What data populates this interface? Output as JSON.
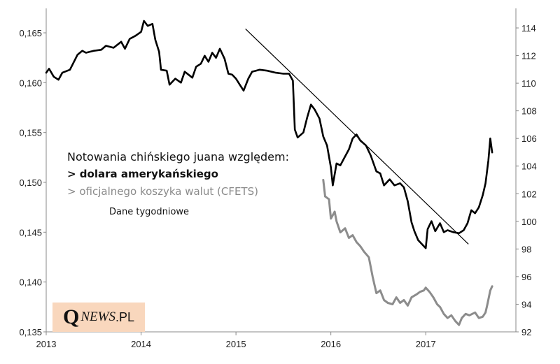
{
  "chart_data": {
    "type": "line",
    "title": "",
    "grid": false,
    "xlabel": "",
    "ylabel": "",
    "x_ticks": [
      "2013",
      "2014",
      "2015",
      "2016",
      "2017"
    ],
    "y_left": {
      "ticks": [
        "0,135",
        "0,140",
        "0,145",
        "0,150",
        "0,155",
        "0,160",
        "0,165"
      ],
      "range": [
        0.135,
        0.168
      ]
    },
    "y_right": {
      "ticks": [
        "92",
        "94",
        "96",
        "98",
        "100",
        "102",
        "104",
        "106",
        "108",
        "110",
        "112",
        "114"
      ],
      "range": [
        92,
        115
      ]
    },
    "series": [
      {
        "name": "dolara amerykańskiego",
        "axis": "left",
        "color": "#000000",
        "points": [
          [
            2013.0,
            0.161
          ],
          [
            2013.03,
            0.1614
          ],
          [
            2013.08,
            0.1606
          ],
          [
            2013.13,
            0.1603
          ],
          [
            2013.17,
            0.161
          ],
          [
            2013.25,
            0.1613
          ],
          [
            2013.33,
            0.1628
          ],
          [
            2013.38,
            0.1632
          ],
          [
            2013.42,
            0.163
          ],
          [
            2013.5,
            0.1632
          ],
          [
            2013.58,
            0.1633
          ],
          [
            2013.63,
            0.1637
          ],
          [
            2013.71,
            0.1635
          ],
          [
            2013.79,
            0.1641
          ],
          [
            2013.83,
            0.1634
          ],
          [
            2013.88,
            0.1644
          ],
          [
            2013.94,
            0.1647
          ],
          [
            2014.0,
            0.1651
          ],
          [
            2014.03,
            0.1662
          ],
          [
            2014.07,
            0.1657
          ],
          [
            2014.12,
            0.1659
          ],
          [
            2014.15,
            0.1643
          ],
          [
            2014.19,
            0.1631
          ],
          [
            2014.21,
            0.1613
          ],
          [
            2014.27,
            0.1612
          ],
          [
            2014.3,
            0.1598
          ],
          [
            2014.36,
            0.1604
          ],
          [
            2014.42,
            0.16
          ],
          [
            2014.46,
            0.1611
          ],
          [
            2014.54,
            0.1605
          ],
          [
            2014.58,
            0.1616
          ],
          [
            2014.63,
            0.1619
          ],
          [
            2014.67,
            0.1627
          ],
          [
            2014.71,
            0.1621
          ],
          [
            2014.75,
            0.163
          ],
          [
            2014.79,
            0.1625
          ],
          [
            2014.83,
            0.1634
          ],
          [
            2014.88,
            0.1624
          ],
          [
            2014.92,
            0.1609
          ],
          [
            2014.96,
            0.1608
          ],
          [
            2015.0,
            0.1604
          ],
          [
            2015.04,
            0.1598
          ],
          [
            2015.08,
            0.1592
          ],
          [
            2015.13,
            0.1604
          ],
          [
            2015.17,
            0.1611
          ],
          [
            2015.21,
            0.1612
          ],
          [
            2015.25,
            0.1613
          ],
          [
            2015.33,
            0.1612
          ],
          [
            2015.42,
            0.161
          ],
          [
            2015.5,
            0.1609
          ],
          [
            2015.56,
            0.1609
          ],
          [
            2015.6,
            0.1602
          ],
          [
            2015.62,
            0.1553
          ],
          [
            2015.65,
            0.1545
          ],
          [
            2015.71,
            0.155
          ],
          [
            2015.75,
            0.1565
          ],
          [
            2015.79,
            0.1578
          ],
          [
            2015.83,
            0.1573
          ],
          [
            2015.88,
            0.1564
          ],
          [
            2015.92,
            0.1546
          ],
          [
            2015.96,
            0.1537
          ],
          [
            2016.0,
            0.1515
          ],
          [
            2016.02,
            0.1497
          ],
          [
            2016.06,
            0.1519
          ],
          [
            2016.1,
            0.1517
          ],
          [
            2016.15,
            0.1526
          ],
          [
            2016.19,
            0.1533
          ],
          [
            2016.23,
            0.1544
          ],
          [
            2016.27,
            0.1548
          ],
          [
            2016.31,
            0.1542
          ],
          [
            2016.37,
            0.1537
          ],
          [
            2016.42,
            0.1527
          ],
          [
            2016.48,
            0.1511
          ],
          [
            2016.52,
            0.1509
          ],
          [
            2016.56,
            0.1497
          ],
          [
            2016.62,
            0.1503
          ],
          [
            2016.67,
            0.1497
          ],
          [
            2016.73,
            0.1499
          ],
          [
            2016.77,
            0.1495
          ],
          [
            2016.81,
            0.1481
          ],
          [
            2016.85,
            0.146
          ],
          [
            2016.88,
            0.1451
          ],
          [
            2016.92,
            0.1442
          ],
          [
            2016.96,
            0.1438
          ],
          [
            2017.0,
            0.1434
          ],
          [
            2017.02,
            0.1453
          ],
          [
            2017.06,
            0.1461
          ],
          [
            2017.1,
            0.1451
          ],
          [
            2017.15,
            0.1459
          ],
          [
            2017.19,
            0.145
          ],
          [
            2017.23,
            0.1452
          ],
          [
            2017.29,
            0.145
          ],
          [
            2017.35,
            0.1449
          ],
          [
            2017.4,
            0.1452
          ],
          [
            2017.44,
            0.1459
          ],
          [
            2017.48,
            0.1472
          ],
          [
            2017.52,
            0.1469
          ],
          [
            2017.56,
            0.1475
          ],
          [
            2017.6,
            0.1487
          ],
          [
            2017.63,
            0.1499
          ],
          [
            2017.66,
            0.1522
          ],
          [
            2017.68,
            0.1544
          ],
          [
            2017.7,
            0.153
          ]
        ]
      },
      {
        "name": "oficjalnego koszyka walut (CFETS)",
        "axis": "right",
        "color": "#8c8c8c",
        "points": [
          [
            2015.92,
            103.0
          ],
          [
            2015.94,
            101.8
          ],
          [
            2015.98,
            101.6
          ],
          [
            2016.0,
            100.2
          ],
          [
            2016.04,
            100.7
          ],
          [
            2016.06,
            100.0
          ],
          [
            2016.1,
            99.2
          ],
          [
            2016.15,
            99.5
          ],
          [
            2016.19,
            98.8
          ],
          [
            2016.23,
            99.0
          ],
          [
            2016.27,
            98.5
          ],
          [
            2016.31,
            98.2
          ],
          [
            2016.35,
            97.8
          ],
          [
            2016.4,
            97.4
          ],
          [
            2016.44,
            96.0
          ],
          [
            2016.48,
            94.8
          ],
          [
            2016.52,
            95.0
          ],
          [
            2016.56,
            94.3
          ],
          [
            2016.6,
            94.1
          ],
          [
            2016.65,
            94.0
          ],
          [
            2016.69,
            94.5
          ],
          [
            2016.73,
            94.1
          ],
          [
            2016.77,
            94.3
          ],
          [
            2016.81,
            93.9
          ],
          [
            2016.85,
            94.5
          ],
          [
            2016.9,
            94.7
          ],
          [
            2016.94,
            94.9
          ],
          [
            2016.98,
            95.0
          ],
          [
            2017.0,
            95.2
          ],
          [
            2017.04,
            94.9
          ],
          [
            2017.08,
            94.5
          ],
          [
            2017.12,
            94.0
          ],
          [
            2017.15,
            93.8
          ],
          [
            2017.19,
            93.3
          ],
          [
            2017.23,
            93.0
          ],
          [
            2017.27,
            93.2
          ],
          [
            2017.31,
            92.8
          ],
          [
            2017.35,
            92.5
          ],
          [
            2017.38,
            93.0
          ],
          [
            2017.42,
            93.3
          ],
          [
            2017.46,
            93.2
          ],
          [
            2017.52,
            93.4
          ],
          [
            2017.56,
            93.0
          ],
          [
            2017.6,
            93.1
          ],
          [
            2017.63,
            93.4
          ],
          [
            2017.65,
            94.0
          ],
          [
            2017.68,
            95.0
          ],
          [
            2017.7,
            95.3
          ]
        ]
      }
    ],
    "trendline": {
      "axis": "left",
      "color": "#000000",
      "points": [
        [
          2015.1,
          0.1654
        ],
        [
          2017.45,
          0.1438
        ]
      ]
    },
    "annotations": {
      "title": "Notowania chińskiego juana względem:",
      "usd_label": "> dolara amerykańskiego",
      "cfets_label": "> oficjalnego  koszyka walut (CFETS)",
      "note": "Dane tygodniowe"
    }
  },
  "logo": {
    "q": "Q",
    "rest": "NEWS",
    "domain": ".PL"
  }
}
